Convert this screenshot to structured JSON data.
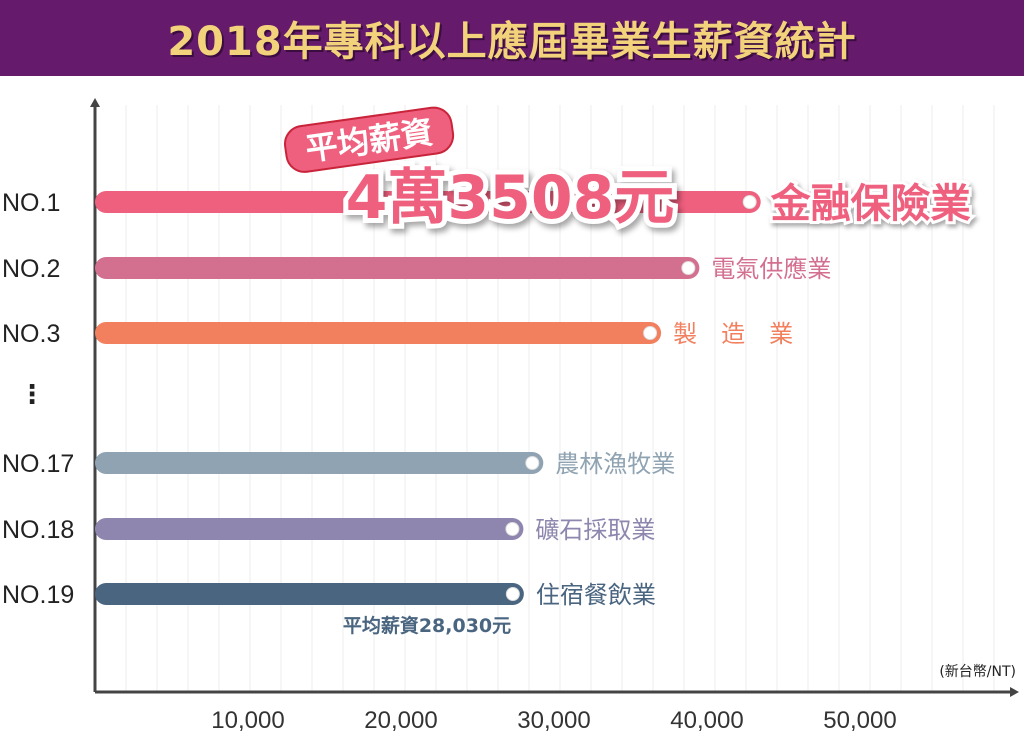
{
  "title": "2018年專科以上應屆畢業生薪資統計",
  "chart_data": {
    "type": "bar",
    "orientation": "horizontal",
    "title": "2018年專科以上應屆畢業生薪資統計",
    "unit_label": "(新台幣/NT)",
    "xlim": [
      0,
      60000
    ],
    "xticks": [
      10000,
      20000,
      30000,
      40000,
      50000
    ],
    "xtick_labels": [
      "10,000",
      "20,000",
      "30,000",
      "40,000",
      "50,000"
    ],
    "ellipsis": "⋮",
    "bars": [
      {
        "rank": "NO.1",
        "category": "金融保險業",
        "value": 43508,
        "color": "#ef5f7e",
        "slot": 0
      },
      {
        "rank": "NO.2",
        "category": "電氣供應業",
        "value": 39500,
        "color": "#d4708f",
        "slot": 1
      },
      {
        "rank": "NO.3",
        "category": "製　造　業",
        "value": 37000,
        "color": "#f27f5e",
        "slot": 2
      },
      {
        "rank": "NO.17",
        "category": "農林漁牧業",
        "value": 29300,
        "color": "#8fa3b2",
        "slot": 4
      },
      {
        "rank": "NO.18",
        "category": "礦石採取業",
        "value": 28000,
        "color": "#8e86ae",
        "slot": 5
      },
      {
        "rank": "NO.19",
        "category": "住宿餐飲業",
        "value": 28030,
        "color": "#4a6580",
        "slot": 6
      }
    ],
    "annotations": {
      "top_badge": "平均薪資",
      "top_value": "4萬3508元",
      "bottom_note": "平均薪資28,030元"
    }
  }
}
